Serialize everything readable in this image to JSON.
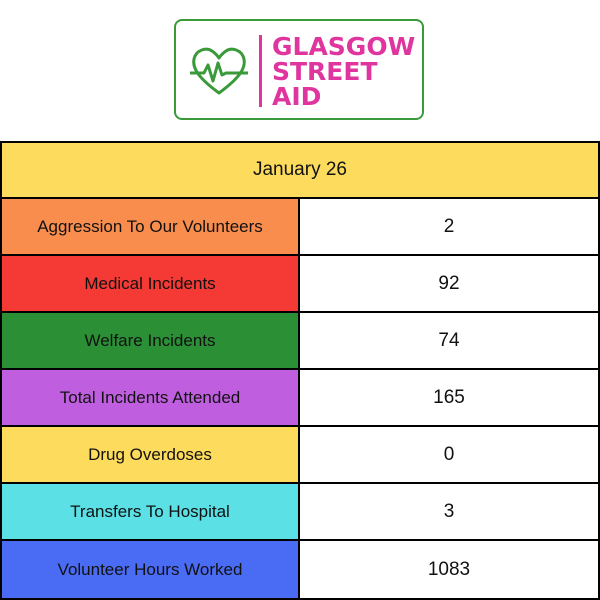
{
  "logo": {
    "icon": "heart-with-pulse-icon",
    "line1": "GLASGOW",
    "line2": "STREET",
    "line3": "AID",
    "text_color": "#e0359f",
    "icon_color": "#3a9a3a"
  },
  "table": {
    "header": "January 26",
    "header_color": "#fddb5c",
    "rows": [
      {
        "label": "Aggression To Our Volunteers",
        "value": "2",
        "color": "#f98d4d"
      },
      {
        "label": "Medical Incidents",
        "value": "92",
        "color": "#f53a35"
      },
      {
        "label": "Welfare Incidents",
        "value": "74",
        "color": "#2b8f35"
      },
      {
        "label": "Total Incidents Attended",
        "value": "165",
        "color": "#c05ee0"
      },
      {
        "label": "Drug Overdoses",
        "value": "0",
        "color": "#fddb5c"
      },
      {
        "label": "Transfers To Hospital",
        "value": "3",
        "color": "#5ae0e5"
      },
      {
        "label": "Volunteer Hours Worked",
        "value": "1083",
        "color": "#4a6cf5"
      }
    ]
  }
}
